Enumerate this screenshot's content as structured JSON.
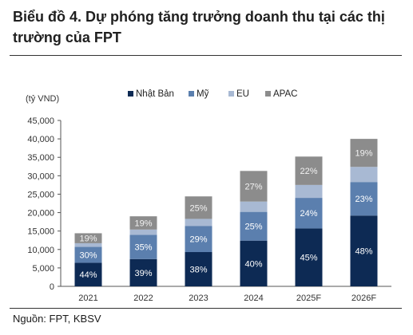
{
  "title": "Biểu đồ 4. Dự phóng tăng trưởng doanh thu tại các thị trường của FPT",
  "source": "Nguồn: FPT, KBSV",
  "chart_data": {
    "type": "bar",
    "stacked": true,
    "unit_label": "(tỷ VND)",
    "categories": [
      "2021",
      "2022",
      "2023",
      "2024",
      "2025F",
      "2026F"
    ],
    "ylim": [
      0,
      45000
    ],
    "yticks": [
      0,
      5000,
      10000,
      15000,
      20000,
      25000,
      30000,
      35000,
      40000,
      45000
    ],
    "ytick_labels": [
      "0",
      "5,000",
      "10,000",
      "15,000",
      "20,000",
      "25,000",
      "30,000",
      "35,000",
      "40,000",
      "45,000"
    ],
    "legend_position": "top",
    "grid": false,
    "series": [
      {
        "name": "Nhật Bản",
        "color": "#0d2a54",
        "values": [
          6400,
          7400,
          9300,
          12400,
          15700,
          19200
        ],
        "labels": [
          "44%",
          "39%",
          "38%",
          "40%",
          "45%",
          "48%"
        ]
      },
      {
        "name": "Mỹ",
        "color": "#5b7fae",
        "values": [
          4300,
          6600,
          7100,
          7800,
          8300,
          9100
        ],
        "labels": [
          "30%",
          "35%",
          "29%",
          "25%",
          "24%",
          "23%"
        ]
      },
      {
        "name": "EU",
        "color": "#a8b9d3",
        "values": [
          1000,
          1400,
          1900,
          2800,
          3500,
          4100
        ],
        "labels": [
          "",
          "",
          "",
          "",
          "",
          ""
        ]
      },
      {
        "name": "APAC",
        "color": "#8c8c8c",
        "values": [
          2700,
          3600,
          6100,
          8300,
          7700,
          7600
        ],
        "labels": [
          "19%",
          "19%",
          "25%",
          "27%",
          "22%",
          "19%"
        ]
      }
    ]
  }
}
